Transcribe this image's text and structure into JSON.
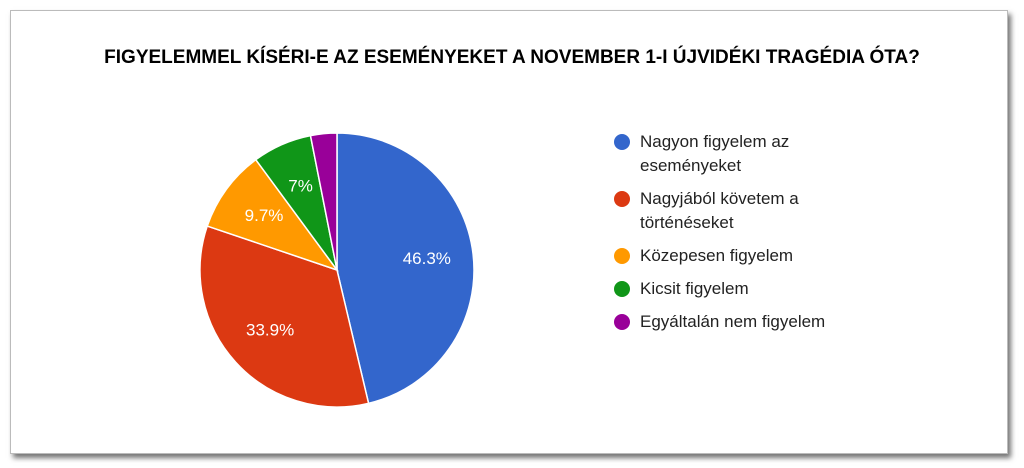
{
  "chart_data": {
    "type": "pie",
    "title": "FIGYELEMMEL KÍSÉRI-E AZ ESEMÉNYEKET A NOVEMBER 1-I ÚJVIDÉKI TRAGÉDIA ÓTA?",
    "categories": [
      "Nagyon figyelem az eseményeket",
      "Nagyjából követem a történéseket",
      "Közepesen figyelem",
      "Kicsit figyelem",
      "Egyáltalán nem figyelem"
    ],
    "values": [
      46.3,
      33.9,
      9.7,
      7,
      3.1
    ],
    "value_labels": [
      "46.3%",
      "33.9%",
      "9.7%",
      "7%",
      null
    ],
    "colors": [
      "#3366cc",
      "#dc3912",
      "#ff9900",
      "#109618",
      "#990099"
    ],
    "legend": "right"
  }
}
